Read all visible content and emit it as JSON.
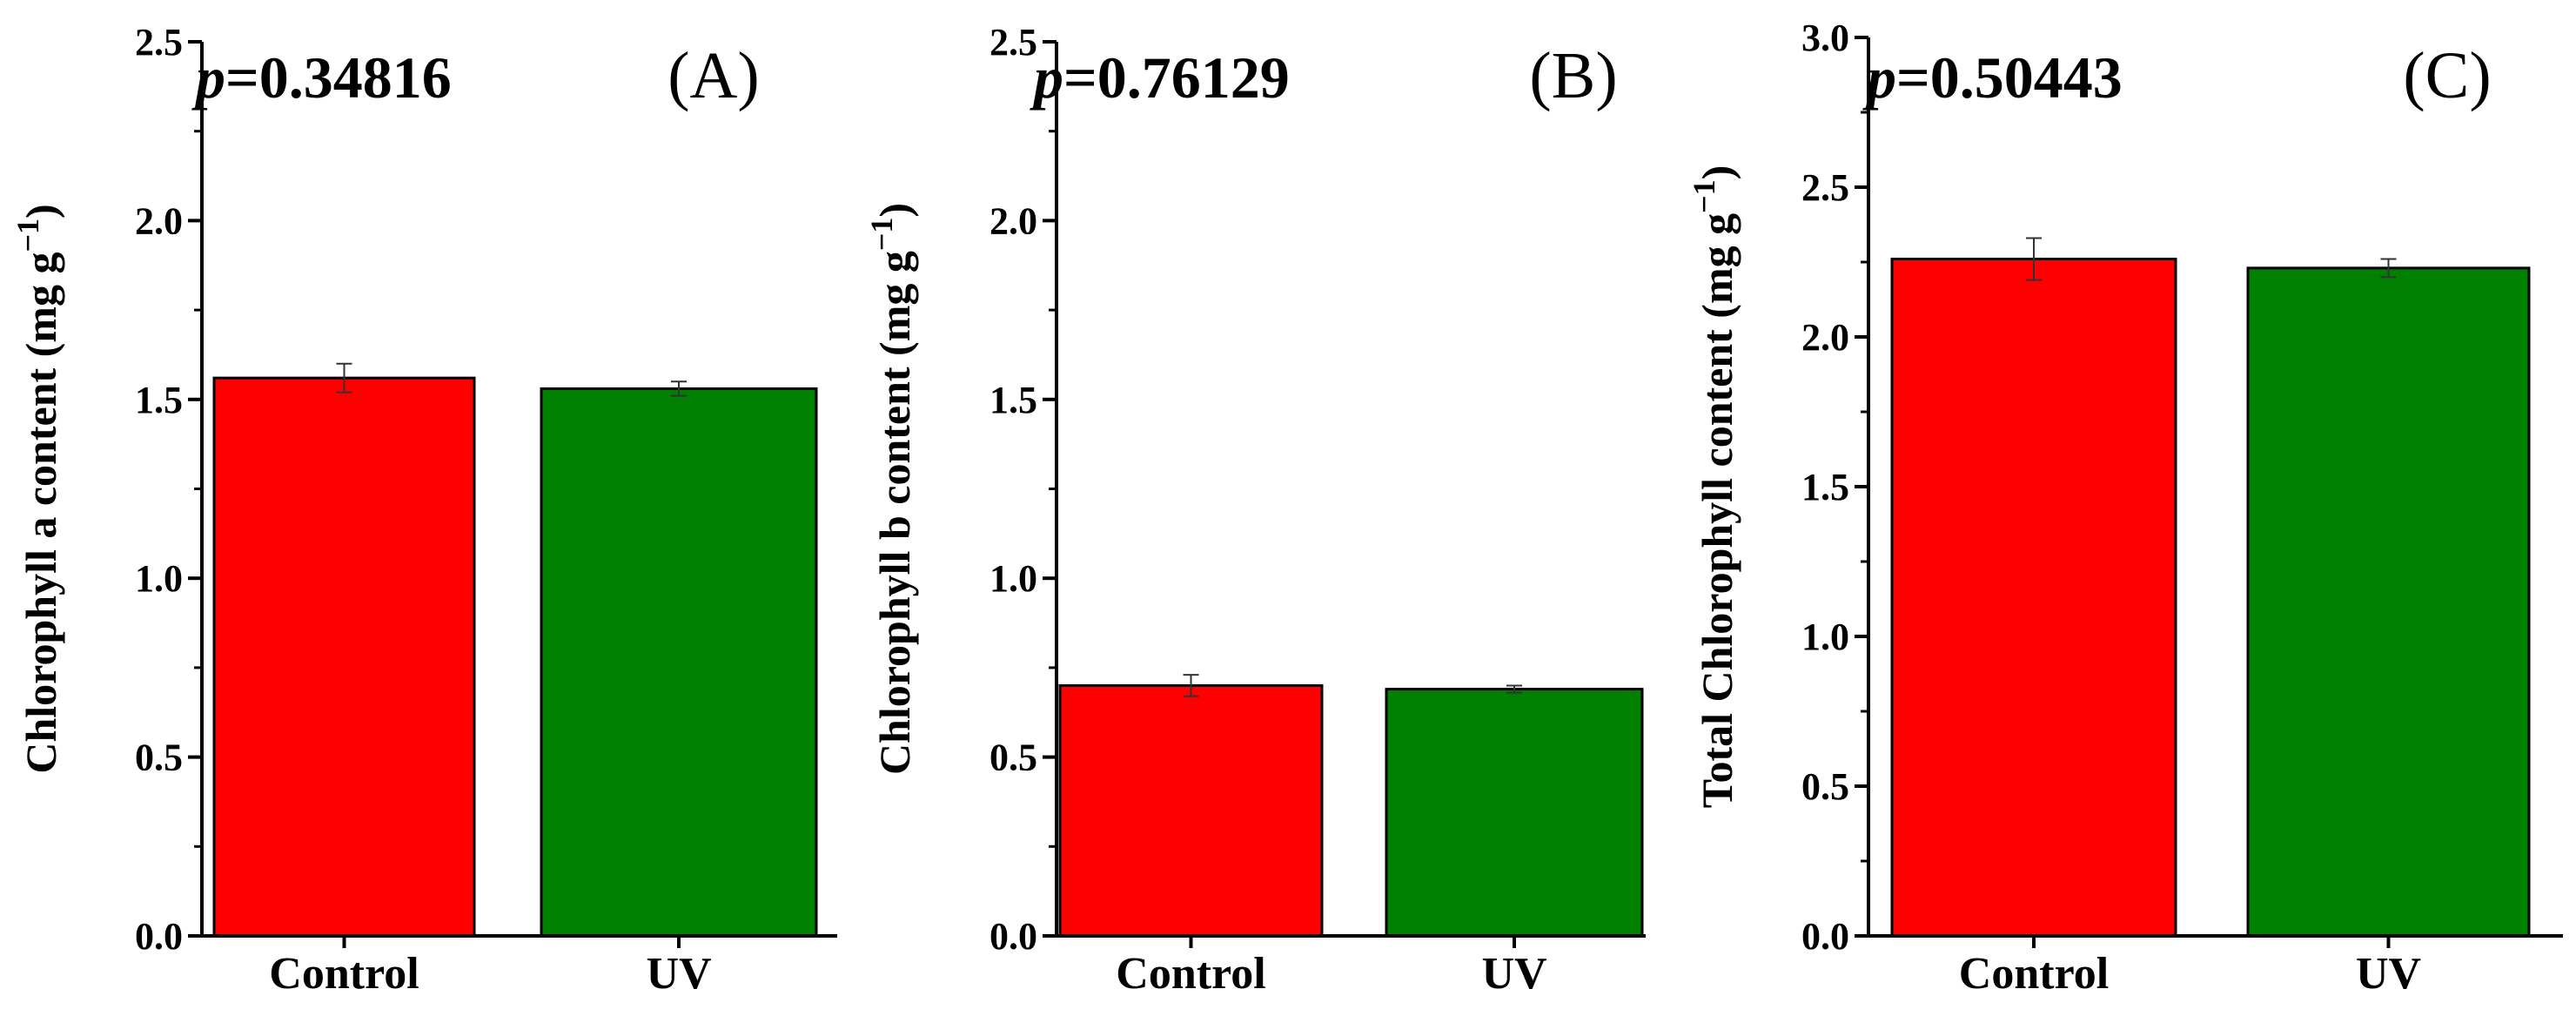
{
  "chart_data": [
    {
      "type": "bar",
      "panel": "(A)",
      "p_prefix": "p",
      "p_value": "=0.34816",
      "ylabel_main": "Chlorophyll a content (mg g",
      "ylabel_sup": "−1",
      "ylabel_end": ")",
      "ylim": [
        0,
        2.5
      ],
      "yticks": [
        "0.0",
        "0.5",
        "1.0",
        "1.5",
        "2.0",
        "2.5"
      ],
      "categories": [
        "Control",
        "UV"
      ],
      "values": [
        1.56,
        1.53
      ],
      "errors": [
        0.04,
        0.02
      ],
      "colors": [
        "#ff0000",
        "#008000"
      ]
    },
    {
      "type": "bar",
      "panel": "(B)",
      "p_prefix": "p",
      "p_value": "=0.76129",
      "ylabel_main": "Chlorophyll b content (mg g",
      "ylabel_sup": "−1",
      "ylabel_end": ")",
      "ylim": [
        0,
        2.5
      ],
      "yticks": [
        "0.0",
        "0.5",
        "1.0",
        "1.5",
        "2.0",
        "2.5"
      ],
      "categories": [
        "Control",
        "UV"
      ],
      "values": [
        0.7,
        0.69
      ],
      "errors": [
        0.03,
        0.01
      ],
      "colors": [
        "#ff0000",
        "#008000"
      ]
    },
    {
      "type": "bar",
      "panel": "(C)",
      "p_prefix": "p",
      "p_value": "=0.50443",
      "ylabel_main": "Total Chlorophyll content (mg g",
      "ylabel_sup": "−1",
      "ylabel_end": ")",
      "ylim": [
        0,
        3.0
      ],
      "yticks": [
        "0.0",
        "0.5",
        "1.0",
        "1.5",
        "2.0",
        "2.5",
        "3.0"
      ],
      "categories": [
        "Control",
        "UV"
      ],
      "values": [
        2.26,
        2.23
      ],
      "errors": [
        0.07,
        0.03
      ],
      "colors": [
        "#ff0000",
        "#008000"
      ]
    }
  ]
}
